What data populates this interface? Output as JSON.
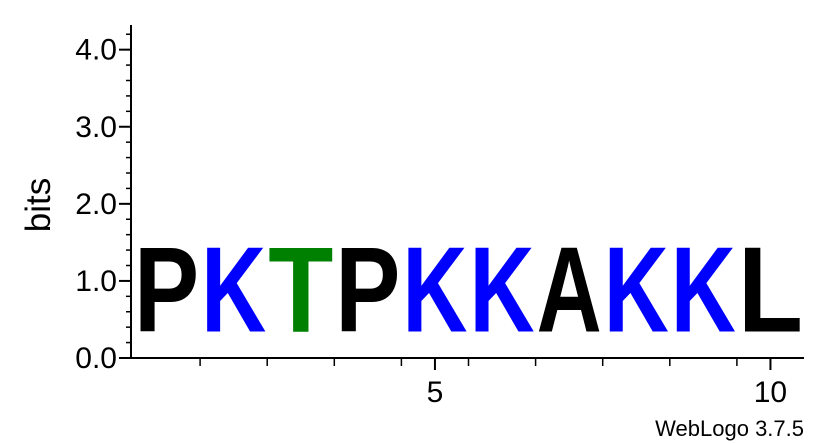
{
  "chart_data": {
    "type": "sequence-logo",
    "ylabel": "bits",
    "ylim": [
      0,
      4.32
    ],
    "yticks": [
      "0.0",
      "1.0",
      "2.0",
      "3.0",
      "4.0"
    ],
    "yticks_values": [
      0,
      1,
      2,
      3,
      4
    ],
    "xticks": [
      "5",
      "10"
    ],
    "xticks_positions": [
      5,
      10
    ],
    "positions": [
      {
        "pos": 1,
        "letter": "P",
        "bits": 1.76,
        "color": "#000000"
      },
      {
        "pos": 2,
        "letter": "K",
        "bits": 1.76,
        "color": "#0000ff"
      },
      {
        "pos": 3,
        "letter": "T",
        "bits": 1.76,
        "color": "#008000"
      },
      {
        "pos": 4,
        "letter": "P",
        "bits": 1.76,
        "color": "#000000"
      },
      {
        "pos": 5,
        "letter": "K",
        "bits": 1.76,
        "color": "#0000ff"
      },
      {
        "pos": 6,
        "letter": "K",
        "bits": 1.76,
        "color": "#0000ff"
      },
      {
        "pos": 7,
        "letter": "A",
        "bits": 1.76,
        "color": "#000000"
      },
      {
        "pos": 8,
        "letter": "K",
        "bits": 1.76,
        "color": "#0000ff"
      },
      {
        "pos": 9,
        "letter": "K",
        "bits": 1.76,
        "color": "#0000ff"
      },
      {
        "pos": 10,
        "letter": "L",
        "bits": 1.76,
        "color": "#000000"
      }
    ]
  },
  "credit": "WebLogo 3.7.5"
}
